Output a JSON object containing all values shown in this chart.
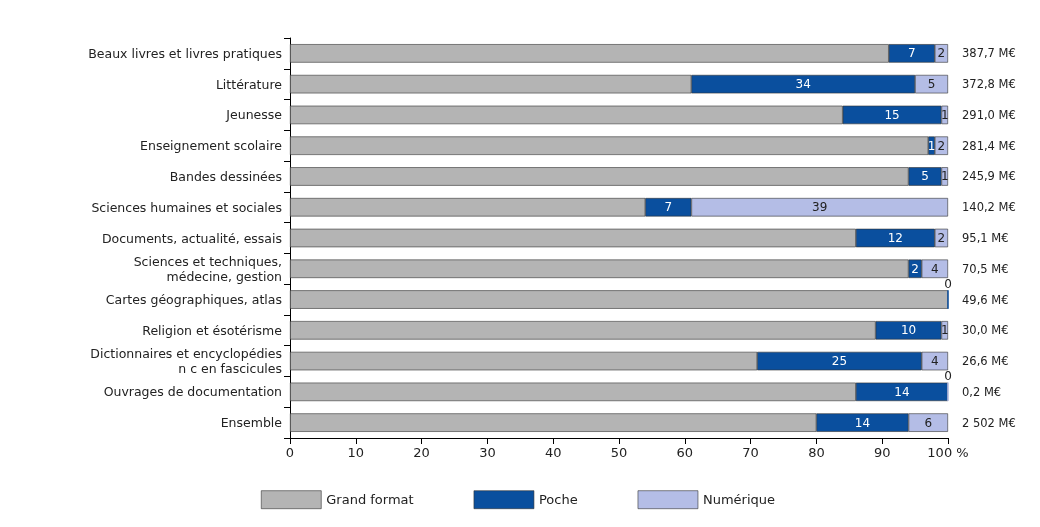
{
  "chart_data": {
    "type": "bar",
    "orientation": "horizontal",
    "stacked": true,
    "categories": [
      "Beaux livres et livres pratiques",
      "Littérature",
      "Jeunesse",
      "Enseignement scolaire",
      "Bandes dessinées",
      "Sciences humaines et sociales",
      "Documents, actualité, essais",
      "Sciences et techniques,\nmédecine, gestion",
      "Cartes géographiques, atlas",
      "Religion et ésotérisme",
      "Dictionnaires et encyclopédies\nn c en fascicules",
      "Ouvrages de documentation",
      "Ensemble"
    ],
    "series": [
      {
        "name": "Grand format",
        "color": "#b4b4b4",
        "values": [
          91,
          61,
          84,
          97,
          94,
          54,
          86,
          94,
          100,
          89,
          71,
          86,
          80
        ]
      },
      {
        "name": "Poche",
        "color": "#0a4f9e",
        "values": [
          7,
          34,
          15,
          1,
          5,
          7,
          12,
          2,
          0,
          10,
          25,
          14,
          14
        ],
        "value_labels": [
          "7",
          "34",
          "15",
          "1",
          "5",
          "7",
          "12",
          "2",
          "0",
          "10",
          "25",
          "14",
          "14"
        ]
      },
      {
        "name": "Numérique",
        "color": "#b4bde6",
        "values": [
          2,
          5,
          1,
          2,
          1,
          39,
          2,
          4,
          null,
          1,
          4,
          0,
          6
        ],
        "value_labels": [
          "2",
          "5",
          "1",
          "2",
          "1",
          "39",
          "2",
          "4",
          null,
          "1",
          "4",
          "0",
          "6"
        ]
      }
    ],
    "annotations": [
      "387,7 M€",
      "372,8 M€",
      "291,0 M€",
      "281,4 M€",
      "245,9 M€",
      "140,2 M€",
      "95,1 M€",
      "70,5 M€",
      "49,6 M€",
      "30,0 M€",
      "26,6 M€",
      "0,2 M€",
      "2 502 M€"
    ],
    "xlim": [
      0,
      100
    ],
    "xticks": [
      0,
      10,
      20,
      30,
      40,
      50,
      60,
      70,
      80,
      90,
      {
        "value": 100,
        "label": "100 %"
      }
    ],
    "grid": false,
    "legend": "bottom"
  }
}
